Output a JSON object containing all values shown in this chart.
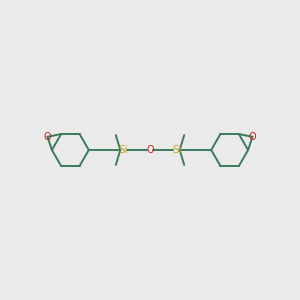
{
  "background_color": "#eaeaea",
  "bond_color": "#3d7a5c",
  "si_color": "#c8a020",
  "o_color": "#cc2222",
  "figsize": [
    3.0,
    3.0
  ],
  "dpi": 100,
  "bond_lw": 1.4,
  "font_size_si": 7.5,
  "font_size_o": 7.0,
  "xlim": [
    0,
    10
  ],
  "ylim": [
    2,
    8
  ]
}
